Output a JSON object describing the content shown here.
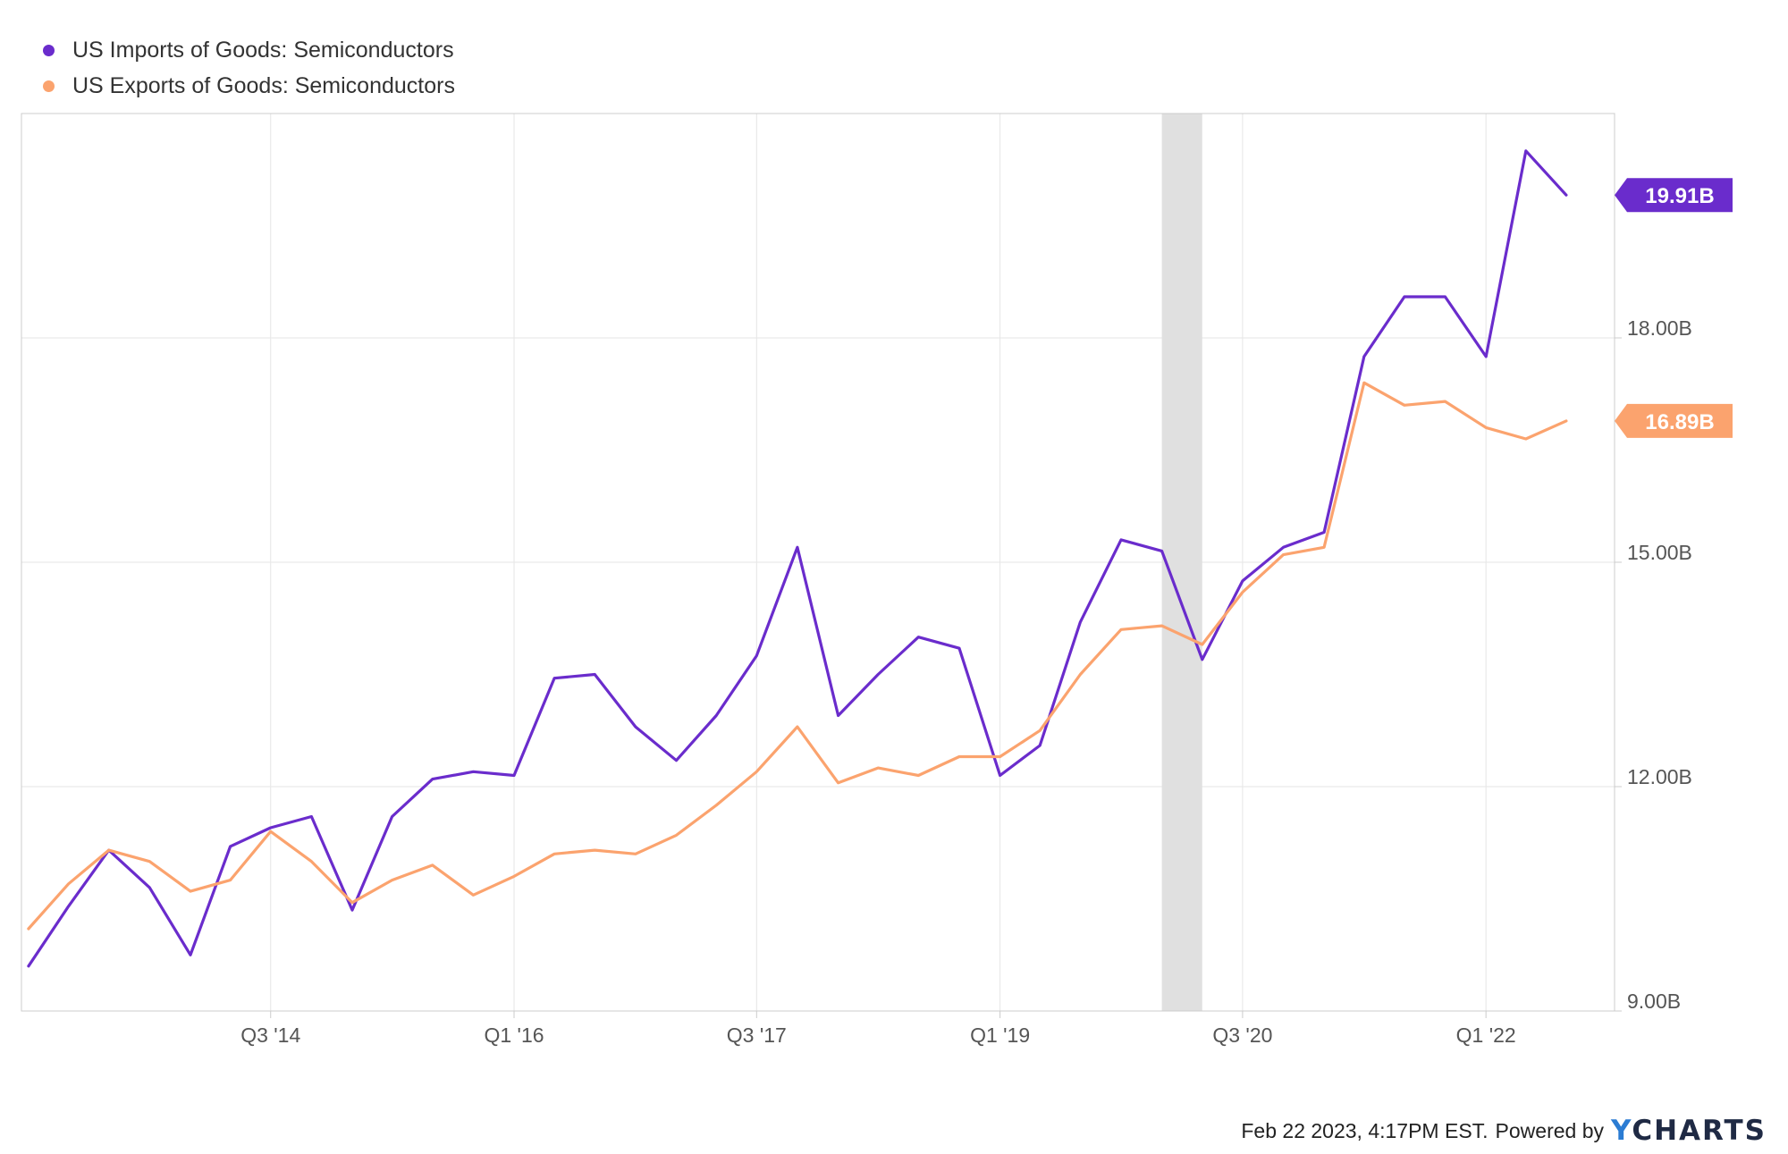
{
  "legend": [
    {
      "label": "US Imports of Goods: Semiconductors",
      "color": "#6a2ccc"
    },
    {
      "label": "US Exports of Goods: Semiconductors",
      "color": "#fba36e"
    }
  ],
  "footer": {
    "text": "Feb 22 2023, 4:17PM EST.",
    "powered_by": "Powered by",
    "logo_y": "Y",
    "logo_rest": "CHARTS"
  },
  "chart_data": {
    "type": "line",
    "x_tick_labels": [
      "Q3 '14",
      "Q1 '16",
      "Q3 '17",
      "Q1 '19",
      "Q3 '20",
      "Q1 '22"
    ],
    "y_tick_labels": [
      "9.00B",
      "12.00B",
      "15.00B",
      "18.00B"
    ],
    "y_ticks": [
      9,
      12,
      15,
      18
    ],
    "ylim": [
      9.0,
      21.0
    ],
    "grid": true,
    "legend_position": "top-left",
    "recession_band": {
      "from": "2020-01-01",
      "to": "2020-04-01",
      "color": "#e0e0e0"
    },
    "x": [
      "2013-01-01",
      "2013-04-01",
      "2013-07-01",
      "2013-10-01",
      "2014-01-01",
      "2014-04-01",
      "2014-07-01",
      "2014-10-01",
      "2015-01-01",
      "2015-04-01",
      "2015-07-01",
      "2015-10-01",
      "2016-01-01",
      "2016-04-01",
      "2016-07-01",
      "2016-10-01",
      "2017-01-01",
      "2017-04-01",
      "2017-07-01",
      "2017-10-01",
      "2018-01-01",
      "2018-04-01",
      "2018-07-01",
      "2018-10-01",
      "2019-01-01",
      "2019-04-01",
      "2019-07-01",
      "2019-10-01",
      "2020-01-01",
      "2020-04-01",
      "2020-07-01",
      "2020-10-01",
      "2021-01-01",
      "2021-04-01",
      "2021-07-01",
      "2021-10-01",
      "2022-01-01",
      "2022-04-01",
      "2022-07-01"
    ],
    "series": [
      {
        "name": "US Imports of Goods: Semiconductors",
        "color": "#6a2ccc",
        "last_label": "19.91B",
        "values": [
          9.6,
          10.4,
          11.15,
          10.65,
          9.75,
          11.2,
          11.45,
          11.6,
          10.35,
          11.6,
          12.1,
          12.2,
          12.15,
          13.45,
          13.5,
          12.8,
          12.35,
          12.95,
          13.75,
          15.2,
          12.95,
          13.5,
          14.0,
          13.85,
          12.15,
          12.55,
          14.2,
          15.3,
          15.15,
          13.7,
          14.75,
          15.2,
          15.4,
          17.75,
          18.55,
          18.55,
          17.75,
          20.5,
          19.91
        ]
      },
      {
        "name": "US Exports of Goods: Semiconductors",
        "color": "#fba36e",
        "last_label": "16.89B",
        "values": [
          10.1,
          10.7,
          11.15,
          11.0,
          10.6,
          10.75,
          11.4,
          11.0,
          10.45,
          10.75,
          10.95,
          10.55,
          10.8,
          11.1,
          11.15,
          11.1,
          11.35,
          11.75,
          12.2,
          12.8,
          12.05,
          12.25,
          12.15,
          12.4,
          12.4,
          12.75,
          13.5,
          14.1,
          14.15,
          13.9,
          14.6,
          15.1,
          15.2,
          17.4,
          17.1,
          17.15,
          16.8,
          16.65,
          16.89
        ]
      }
    ]
  }
}
